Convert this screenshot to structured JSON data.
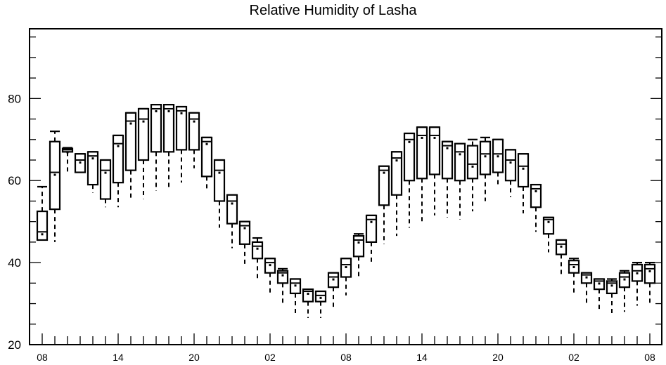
{
  "chart_data": {
    "type": "boxplot",
    "title": "Relative Humidity of Lasha",
    "xlabel": "",
    "ylabel": "",
    "ylim": [
      20,
      97
    ],
    "yticks": [
      20,
      40,
      60,
      80
    ],
    "x_tick_labels": [
      "08",
      "14",
      "20",
      "02",
      "08",
      "14",
      "20",
      "02",
      "08"
    ],
    "x_tick_positions": [
      0,
      6,
      12,
      18,
      24,
      30,
      36,
      42,
      48
    ],
    "x_minor_step": 1,
    "grid": false,
    "boxes": [
      {
        "x": 0,
        "min": 45.5,
        "q1": 45.5,
        "median": 47.5,
        "q3": 52.5,
        "max": 58.5
      },
      {
        "x": 1,
        "min": 45.0,
        "q1": 53.0,
        "median": 62.0,
        "q3": 69.5,
        "max": 72.0
      },
      {
        "x": 2,
        "min": 62.0,
        "q1": 67.0,
        "median": 67.5,
        "q3": 67.8,
        "max": 68.0
      },
      {
        "x": 3,
        "min": 62.0,
        "q1": 62.0,
        "median": 65.0,
        "q3": 66.5,
        "max": 66.5
      },
      {
        "x": 4,
        "min": 57.0,
        "q1": 59.0,
        "median": 66.0,
        "q3": 67.0,
        "max": 67.0
      },
      {
        "x": 5,
        "min": 53.5,
        "q1": 55.5,
        "median": 62.5,
        "q3": 65.0,
        "max": 65.0
      },
      {
        "x": 6,
        "min": 53.5,
        "q1": 59.5,
        "median": 69.0,
        "q3": 71.0,
        "max": 71.0
      },
      {
        "x": 7,
        "min": 55.0,
        "q1": 62.5,
        "median": 74.5,
        "q3": 76.5,
        "max": 76.5
      },
      {
        "x": 8,
        "min": 55.5,
        "q1": 65.0,
        "median": 75.0,
        "q3": 77.5,
        "max": 77.5
      },
      {
        "x": 9,
        "min": 57.5,
        "q1": 67.0,
        "median": 77.5,
        "q3": 78.5,
        "max": 78.5
      },
      {
        "x": 10,
        "min": 58.0,
        "q1": 67.0,
        "median": 77.5,
        "q3": 78.5,
        "max": 78.5
      },
      {
        "x": 11,
        "min": 59.5,
        "q1": 67.5,
        "median": 77.0,
        "q3": 78.0,
        "max": 78.0
      },
      {
        "x": 12,
        "min": 63.0,
        "q1": 67.5,
        "median": 75.0,
        "q3": 76.5,
        "max": 76.5
      },
      {
        "x": 13,
        "min": 58.0,
        "q1": 61.0,
        "median": 69.5,
        "q3": 70.5,
        "max": 70.5
      },
      {
        "x": 14,
        "min": 48.5,
        "q1": 55.0,
        "median": 62.5,
        "q3": 65.0,
        "max": 65.0
      },
      {
        "x": 15,
        "min": 43.5,
        "q1": 49.5,
        "median": 55.0,
        "q3": 56.5,
        "max": 56.5
      },
      {
        "x": 16,
        "min": 39.0,
        "q1": 44.5,
        "median": 49.0,
        "q3": 50.0,
        "max": 50.0
      },
      {
        "x": 17,
        "min": 36.0,
        "q1": 41.0,
        "median": 44.0,
        "q3": 45.0,
        "max": 46.0
      },
      {
        "x": 18,
        "min": 32.5,
        "q1": 37.5,
        "median": 40.0,
        "q3": 41.0,
        "max": 41.0
      },
      {
        "x": 19,
        "min": 30.0,
        "q1": 35.0,
        "median": 37.5,
        "q3": 38.0,
        "max": 38.5
      },
      {
        "x": 20,
        "min": 27.5,
        "q1": 32.5,
        "median": 35.0,
        "q3": 36.0,
        "max": 36.0
      },
      {
        "x": 21,
        "min": 26.5,
        "q1": 30.5,
        "median": 33.0,
        "q3": 33.5,
        "max": 33.5
      },
      {
        "x": 22,
        "min": 26.5,
        "q1": 30.5,
        "median": 32.0,
        "q3": 33.0,
        "max": 33.0
      },
      {
        "x": 23,
        "min": 29.0,
        "q1": 34.0,
        "median": 36.5,
        "q3": 37.5,
        "max": 37.5
      },
      {
        "x": 24,
        "min": 32.0,
        "q1": 36.5,
        "median": 39.5,
        "q3": 41.0,
        "max": 41.0
      },
      {
        "x": 25,
        "min": 36.0,
        "q1": 41.5,
        "median": 45.5,
        "q3": 46.5,
        "max": 47.0
      },
      {
        "x": 26,
        "min": 39.5,
        "q1": 45.0,
        "median": 50.5,
        "q3": 51.5,
        "max": 51.5
      },
      {
        "x": 27,
        "min": 44.5,
        "q1": 54.0,
        "median": 62.5,
        "q3": 63.5,
        "max": 63.5
      },
      {
        "x": 28,
        "min": 46.5,
        "q1": 56.5,
        "median": 65.5,
        "q3": 67.0,
        "max": 67.0
      },
      {
        "x": 29,
        "min": 48.5,
        "q1": 60.0,
        "median": 70.0,
        "q3": 71.5,
        "max": 71.5
      },
      {
        "x": 30,
        "min": 50.0,
        "q1": 60.5,
        "median": 71.0,
        "q3": 73.0,
        "max": 73.0
      },
      {
        "x": 31,
        "min": 51.5,
        "q1": 61.5,
        "median": 71.0,
        "q3": 73.0,
        "max": 73.0
      },
      {
        "x": 32,
        "min": 51.0,
        "q1": 60.5,
        "median": 68.5,
        "q3": 69.5,
        "max": 69.5
      },
      {
        "x": 33,
        "min": 50.5,
        "q1": 60.0,
        "median": 67.0,
        "q3": 69.0,
        "max": 69.0
      },
      {
        "x": 34,
        "min": 52.5,
        "q1": 60.5,
        "median": 64.0,
        "q3": 68.5,
        "max": 70.0
      },
      {
        "x": 35,
        "min": 55.0,
        "q1": 61.5,
        "median": 66.5,
        "q3": 69.5,
        "max": 70.5
      },
      {
        "x": 36,
        "min": 58.5,
        "q1": 62.0,
        "median": 66.5,
        "q3": 70.0,
        "max": 70.0
      },
      {
        "x": 37,
        "min": 56.0,
        "q1": 60.0,
        "median": 65.0,
        "q3": 67.5,
        "max": 67.5
      },
      {
        "x": 38,
        "min": 52.0,
        "q1": 58.5,
        "median": 63.5,
        "q3": 66.5,
        "max": 66.5
      },
      {
        "x": 39,
        "min": 47.5,
        "q1": 53.5,
        "median": 58.0,
        "q3": 59.0,
        "max": 59.0
      },
      {
        "x": 40,
        "min": 42.5,
        "q1": 47.0,
        "median": 50.5,
        "q3": 51.0,
        "max": 51.0
      },
      {
        "x": 41,
        "min": 36.5,
        "q1": 42.0,
        "median": 44.5,
        "q3": 45.5,
        "max": 45.5
      },
      {
        "x": 42,
        "min": 32.5,
        "q1": 37.5,
        "median": 39.5,
        "q3": 40.5,
        "max": 41.0
      },
      {
        "x": 43,
        "min": 30.0,
        "q1": 35.0,
        "median": 37.0,
        "q3": 37.5,
        "max": 37.5
      },
      {
        "x": 44,
        "min": 28.5,
        "q1": 33.5,
        "median": 35.5,
        "q3": 36.0,
        "max": 36.0
      },
      {
        "x": 45,
        "min": 27.5,
        "q1": 32.5,
        "median": 35.0,
        "q3": 35.5,
        "max": 36.0
      },
      {
        "x": 46,
        "min": 28.0,
        "q1": 34.0,
        "median": 36.5,
        "q3": 37.5,
        "max": 38.0
      },
      {
        "x": 47,
        "min": 29.5,
        "q1": 35.5,
        "median": 38.0,
        "q3": 39.5,
        "max": 40.0
      },
      {
        "x": 48,
        "min": 30.0,
        "q1": 35.0,
        "median": 38.5,
        "q3": 39.5,
        "max": 40.0
      }
    ]
  }
}
